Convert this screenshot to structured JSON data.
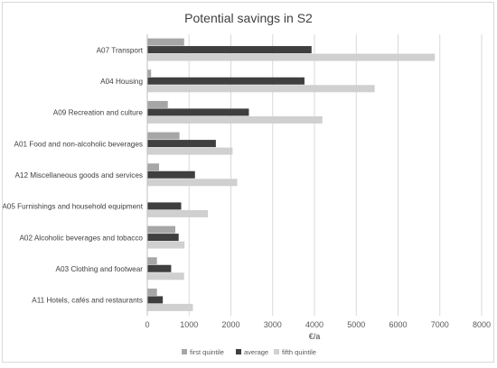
{
  "chart_data": {
    "type": "bar",
    "orientation": "horizontal",
    "title": "Potential savings in S2",
    "xlabel": "€/a",
    "ylabel": "",
    "xlim": [
      0,
      8000
    ],
    "x_ticks": [
      0,
      1000,
      2000,
      3000,
      4000,
      5000,
      6000,
      7000,
      8000
    ],
    "grid": "vertical",
    "legend_position": "bottom",
    "categories": [
      "A07 Transport",
      "A04 Housing",
      "A09 Recreation and culture",
      "A01 Food and non-alcoholic beverages",
      "A12 Miscellaneous goods and services",
      "A05 Furnishings and household equipment",
      "A02 Alcoholic beverages and tobacco",
      "A03 Clothing and footwear",
      "A11 Hotels, cafés and restaurants"
    ],
    "series": [
      {
        "name": "first quintile",
        "color": "#a6a6a6",
        "values": [
          870,
          80,
          480,
          760,
          270,
          0,
          660,
          220,
          220
        ]
      },
      {
        "name": "average",
        "color": "#3f3f3f",
        "values": [
          3920,
          3750,
          2420,
          1630,
          1130,
          800,
          740,
          560,
          360
        ]
      },
      {
        "name": "fifth quintile",
        "color": "#d0d0d0",
        "values": [
          6870,
          5430,
          4180,
          2030,
          2140,
          1440,
          880,
          870,
          1080
        ]
      }
    ]
  }
}
